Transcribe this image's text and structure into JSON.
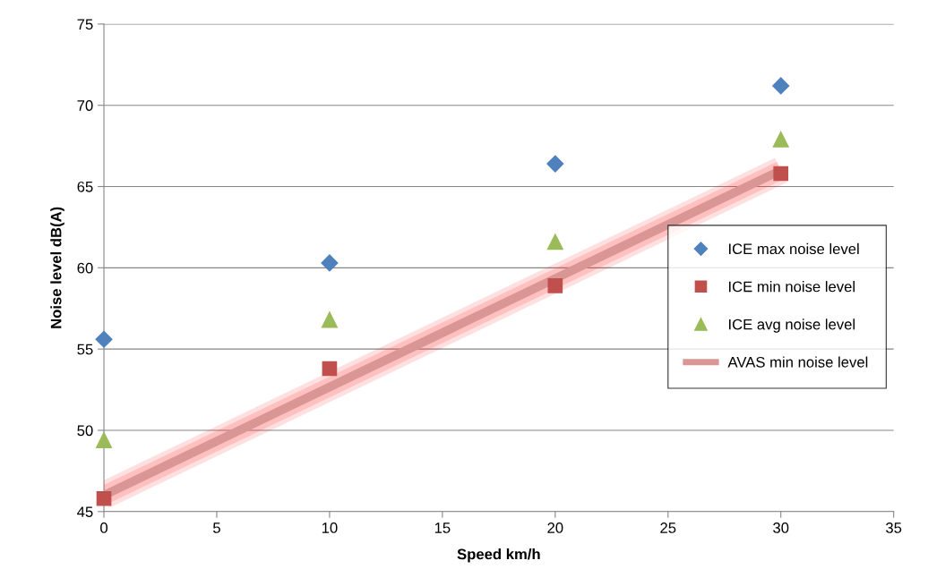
{
  "chart_data": {
    "type": "scatter",
    "xlabel": "Speed km/h",
    "ylabel": "Noise level dB(A)",
    "x": [
      0,
      10,
      20,
      30
    ],
    "series": [
      {
        "name": "ICE max noise level",
        "color": "#4f81bd",
        "marker": "diamond",
        "values": [
          55.6,
          60.3,
          66.4,
          71.2
        ]
      },
      {
        "name": "ICE min noise level",
        "color": "#c0504d",
        "marker": "square",
        "values": [
          45.8,
          53.8,
          58.9,
          65.8
        ]
      },
      {
        "name": "ICE avg noise level",
        "color": "#9bbb59",
        "marker": "triangle",
        "values": [
          49.4,
          56.8,
          61.6,
          67.9
        ]
      },
      {
        "name": "AVAS min noise level",
        "type": "line",
        "color": "#d99694",
        "x": [
          0,
          30
        ],
        "values": [
          46,
          66
        ],
        "marker": "none"
      }
    ],
    "xlim": [
      0,
      35
    ],
    "xticks": [
      0,
      5,
      10,
      15,
      20,
      25,
      30,
      35
    ],
    "ylim": [
      45,
      75
    ],
    "yticks": [
      45,
      50,
      55,
      60,
      65,
      70,
      75
    ],
    "grid": "y",
    "legend": "right"
  }
}
